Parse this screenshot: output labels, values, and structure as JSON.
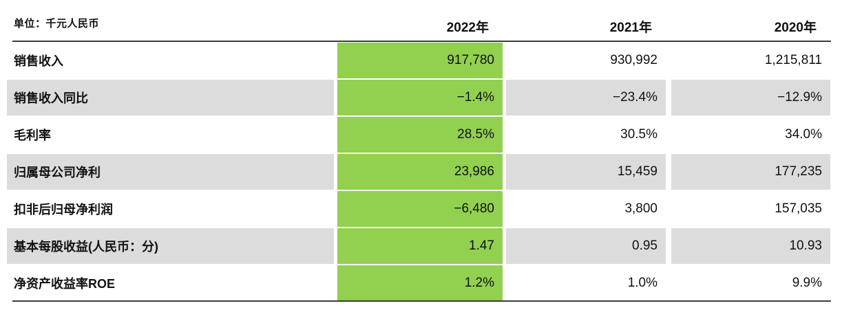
{
  "chart_data": {
    "type": "table",
    "unit_label": "单位：千元人民币",
    "columns": [
      "2022年",
      "2021年",
      "2020年"
    ],
    "highlight_column": "2022年",
    "rows": [
      {
        "label": "销售收入",
        "values": [
          "917,780",
          "930,992",
          "1,215,811"
        ]
      },
      {
        "label": "销售收入同比",
        "values": [
          "−1.4%",
          "−23.4%",
          "−12.9%"
        ]
      },
      {
        "label": "毛利率",
        "values": [
          "28.5%",
          "30.5%",
          "34.0%"
        ]
      },
      {
        "label": "归属母公司净利",
        "values": [
          "23,986",
          "15,459",
          "177,235"
        ]
      },
      {
        "label": "扣非后归母净利润",
        "values": [
          "−6,480",
          "3,800",
          "157,035"
        ]
      },
      {
        "label": "基本每股收益(人民币：分)",
        "values": [
          "1.47",
          "0.95",
          "10.93"
        ]
      },
      {
        "label": "净资产收益率ROE",
        "values": [
          "1.2%",
          "1.0%",
          "9.9%"
        ]
      }
    ],
    "layout": {
      "zebra_striping": "even rows gray",
      "value_alignment": "right",
      "header_rule": true,
      "footer_rule": true
    },
    "colors": {
      "highlight_green": "#92d050",
      "zebra_gray": "#dcdcdc",
      "rule_dark": "#3a3a3a",
      "text": "#111111"
    }
  }
}
